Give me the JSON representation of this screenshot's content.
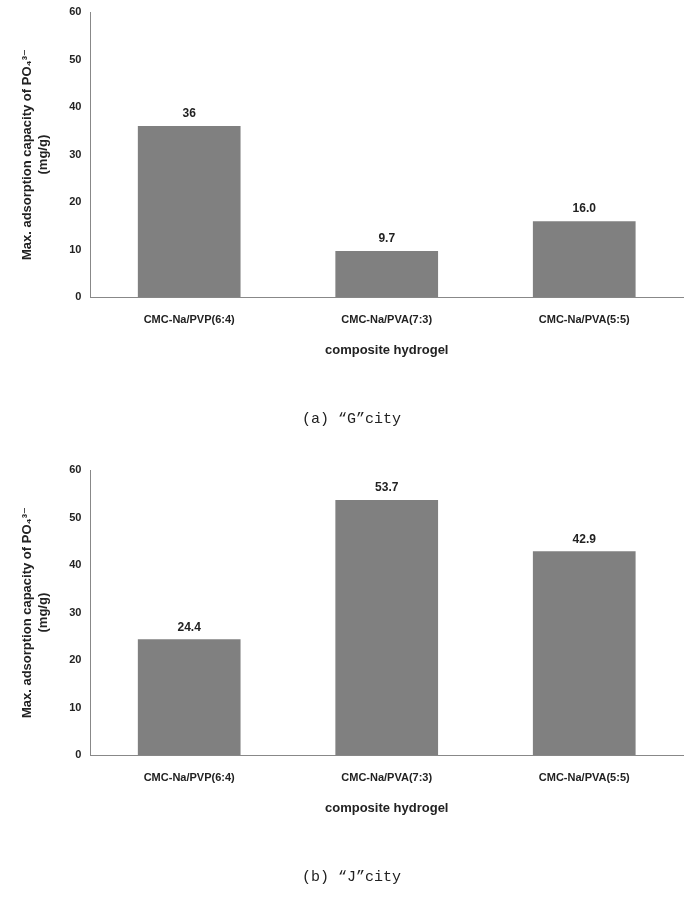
{
  "chart_data": [
    {
      "type": "bar",
      "title": "(a) “G”city",
      "x_label": "composite hydrogel",
      "y_label": [
        "Max. adsorption capacity of PO₄³⁻",
        "(mg/g)"
      ],
      "categories": [
        "CMC-Na/PVP(6:4)",
        "CMC-Na/PVA(7:3)",
        "CMC-Na/PVA(5:5)"
      ],
      "values": [
        36,
        9.7,
        16.0
      ],
      "value_labels": [
        "36",
        "9.7",
        "16.0"
      ],
      "color": "#808080",
      "ylim": [
        0,
        60
      ],
      "yticks": [
        0,
        10,
        20,
        30,
        40,
        50,
        60
      ],
      "grid": false,
      "data_labels": true
    },
    {
      "type": "bar",
      "title": "(b) “J”city",
      "x_label": "composite hydrogel",
      "y_label": [
        "Max. adsorption capacity of PO₄³⁻",
        "(mg/g)"
      ],
      "categories": [
        "CMC-Na/PVP(6:4)",
        "CMC-Na/PVA(7:3)",
        "CMC-Na/PVA(5:5)"
      ],
      "values": [
        24.4,
        53.7,
        42.9
      ],
      "color": "#808080",
      "ylim": [
        0,
        60
      ],
      "yticks": [
        0,
        10,
        20,
        30,
        40,
        50,
        60
      ],
      "grid": false,
      "data_labels": true
    }
  ]
}
